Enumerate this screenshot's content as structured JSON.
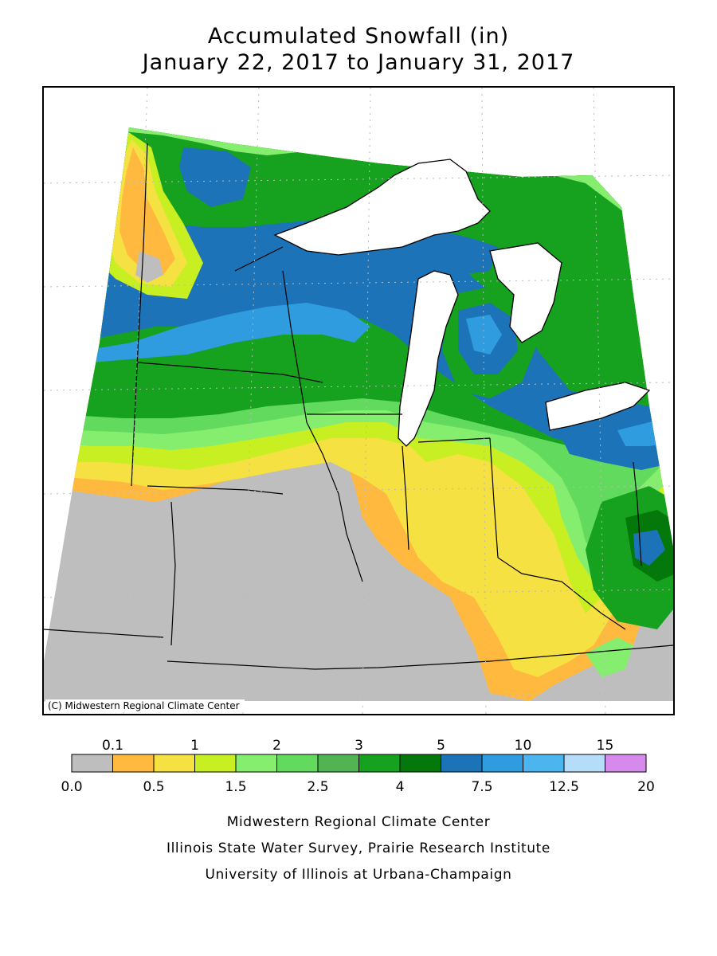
{
  "title": {
    "line1": "Accumulated Snowfall (in)",
    "line2": "January 22, 2017 to January 31, 2017"
  },
  "map": {
    "copyright": "(C) Midwestern Regional Climate Center",
    "colors": {
      "c0": "#bebebe",
      "c1": "#ffb93e",
      "c2": "#f6e143",
      "c3": "#c8ef22",
      "c4": "#86ee6e",
      "c5": "#62da5e",
      "c6": "#52b352",
      "c7": "#16a11f",
      "c8": "#04780a",
      "c9": "#1d73b8",
      "c10": "#2e9cde",
      "c11": "#4cb4ef",
      "c12": "#b5dcf8",
      "c13": "#d68aeb"
    }
  },
  "legend": {
    "top_labels": [
      "0.1",
      "1",
      "2",
      "3",
      "5",
      "10",
      "15"
    ],
    "bottom_labels": [
      "0.0",
      "0.5",
      "1.5",
      "2.5",
      "4",
      "7.5",
      "12.5",
      "20"
    ],
    "colors": [
      "#bebebe",
      "#ffb93e",
      "#f6e143",
      "#c8ef22",
      "#86ee6e",
      "#62da5e",
      "#52b352",
      "#16a11f",
      "#04780a",
      "#1d73b8",
      "#2e9cde",
      "#4cb4ef",
      "#b5dcf8",
      "#d68aeb"
    ]
  },
  "credits": {
    "line1": "Midwestern Regional Climate Center",
    "line2": "Illinois State Water Survey, Prairie Research Institute",
    "line3": "University of Illinois at Urbana-Champaign"
  }
}
